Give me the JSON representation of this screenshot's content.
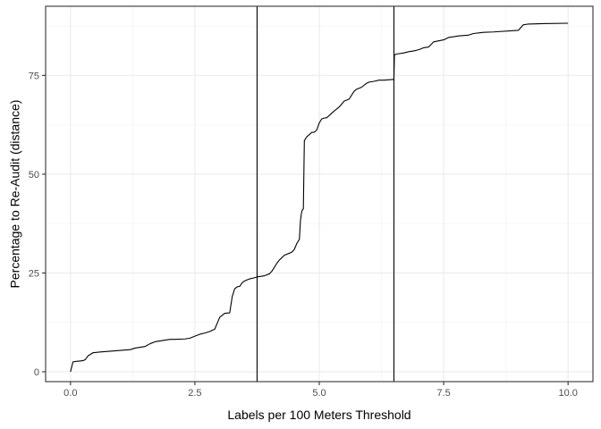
{
  "chart_data": {
    "type": "line",
    "title": "",
    "xlabel": "Labels per 100 Meters Threshold",
    "ylabel": "Percentage to Re-Audit (distance)",
    "xlim": [
      -0.5,
      10.5
    ],
    "ylim": [
      -2.5,
      92.5
    ],
    "x_ticks": [
      0,
      2.5,
      5,
      7.5,
      10
    ],
    "x_tick_labels": [
      "0.0",
      "2.5",
      "5.0",
      "7.5",
      "10.0"
    ],
    "y_ticks": [
      0,
      25,
      50,
      75
    ],
    "y_tick_labels": [
      "0",
      "25",
      "50",
      "75"
    ],
    "x_minor_ticks": [
      1.25,
      3.75,
      6.25,
      8.75
    ],
    "y_minor_ticks": [
      12.5,
      37.5,
      62.5,
      87.5
    ],
    "grid": true,
    "vertical_lines": [
      3.75,
      6.5
    ],
    "series": [
      {
        "name": "",
        "color": "#000000",
        "x": [
          0,
          0.05,
          0.1,
          0.25,
          0.3,
          0.35,
          0.45,
          0.6,
          0.8,
          1.0,
          1.2,
          1.3,
          1.5,
          1.6,
          1.7,
          1.8,
          1.9,
          2.0,
          2.1,
          2.3,
          2.4,
          2.5,
          2.6,
          2.7,
          2.8,
          2.9,
          3.0,
          3.1,
          3.2,
          3.25,
          3.3,
          3.35,
          3.4,
          3.45,
          3.5,
          3.6,
          3.7,
          3.75,
          3.8,
          3.9,
          4.0,
          4.05,
          4.1,
          4.15,
          4.2,
          4.3,
          4.4,
          4.45,
          4.5,
          4.55,
          4.6,
          4.62,
          4.64,
          4.66,
          4.68,
          4.7,
          4.75,
          4.8,
          4.85,
          4.9,
          4.95,
          5.0,
          5.05,
          5.1,
          5.15,
          5.3,
          5.35,
          5.4,
          5.5,
          5.6,
          5.7,
          5.75,
          5.85,
          5.95,
          6.0,
          6.1,
          6.2,
          6.3,
          6.5,
          6.51,
          6.55,
          6.7,
          6.8,
          6.9,
          7.0,
          7.1,
          7.2,
          7.3,
          7.5,
          7.6,
          7.8,
          8.0,
          8.1,
          8.3,
          8.5,
          9.0,
          9.1,
          9.2,
          9.5,
          10.0
        ],
        "y": [
          0,
          2.5,
          2.6,
          2.8,
          3.1,
          4.0,
          4.8,
          5.0,
          5.2,
          5.4,
          5.6,
          6.0,
          6.4,
          7.1,
          7.6,
          7.8,
          8.0,
          8.2,
          8.2,
          8.3,
          8.5,
          9.0,
          9.5,
          9.8,
          10.2,
          10.8,
          13.8,
          14.8,
          14.9,
          19.0,
          21.0,
          21.5,
          21.6,
          22.5,
          23.0,
          23.5,
          23.8,
          24.0,
          24.1,
          24.3,
          24.8,
          25.5,
          26.5,
          27.5,
          28.3,
          29.5,
          30.0,
          30.3,
          31.0,
          32.5,
          33.5,
          38.0,
          40.0,
          41.0,
          41.2,
          58.5,
          59.5,
          60.0,
          60.6,
          60.6,
          61.2,
          63.0,
          64.0,
          64.2,
          64.3,
          66.0,
          66.5,
          67.0,
          68.5,
          69.0,
          71.0,
          71.5,
          72.0,
          73.0,
          73.3,
          73.5,
          73.8,
          73.8,
          74.0,
          80.2,
          80.4,
          80.7,
          81.0,
          81.2,
          81.5,
          82.0,
          82.2,
          83.5,
          84.0,
          84.6,
          85.0,
          85.2,
          85.6,
          85.9,
          86.0,
          86.4,
          87.8,
          88.0,
          88.1,
          88.2
        ]
      }
    ]
  }
}
